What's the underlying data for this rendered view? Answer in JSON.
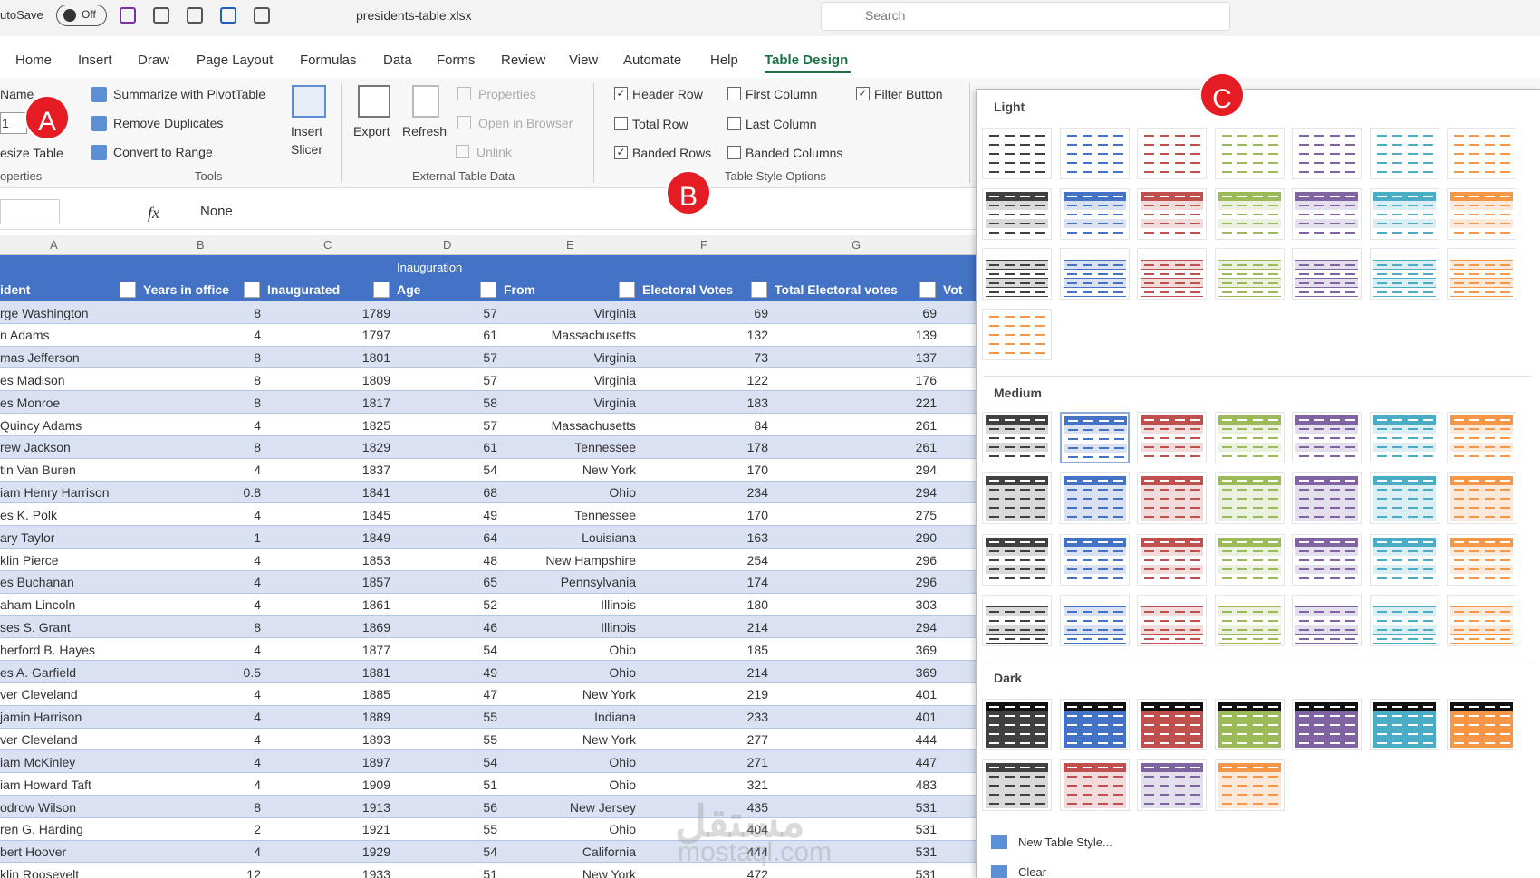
{
  "title_bar": {
    "autosave": "utoSave",
    "toggle": "Off",
    "filename": "presidents-table.xlsx",
    "search": "Search"
  },
  "tabs": [
    "Home",
    "Insert",
    "Draw",
    "Page Layout",
    "Formulas",
    "Data",
    "Forms",
    "Review",
    "View",
    "Automate",
    "Help",
    "Table Design"
  ],
  "active_tab": 11,
  "ribbon": {
    "properties": {
      "name": "Name",
      "box": "1",
      "resize": "esize Table",
      "group": "operties"
    },
    "tools": {
      "items": [
        "Summarize with PivotTable",
        "Remove Duplicates",
        "Convert to Range"
      ],
      "group": "Tools"
    },
    "slicer": [
      "Insert",
      "Slicer"
    ],
    "external": {
      "export": "Export",
      "refresh": "Refresh",
      "items": [
        "Properties",
        "Open in Browser",
        "Unlink"
      ],
      "group": "External Table Data"
    },
    "options": {
      "items": [
        {
          "label": "Header Row",
          "checked": true
        },
        {
          "label": "Total Row",
          "checked": false
        },
        {
          "label": "Banded Rows",
          "checked": true
        },
        {
          "label": "First Column",
          "checked": false
        },
        {
          "label": "Last Column",
          "checked": false
        },
        {
          "label": "Banded Columns",
          "checked": false
        },
        {
          "label": "Filter Button",
          "checked": true
        }
      ],
      "group": "Table Style Options"
    }
  },
  "formula_bar": {
    "fx": "fx",
    "value": "None"
  },
  "column_letters": [
    "A",
    "B",
    "C",
    "D",
    "E",
    "F",
    "G"
  ],
  "table": {
    "super_header": "Inauguration",
    "headers": [
      "ident",
      "Years in office",
      "Inaugurated",
      "Age",
      "From",
      "Electoral Votes",
      "Total Electoral votes",
      "Vot"
    ],
    "rows": [
      [
        "rge Washington",
        8,
        1789,
        57,
        "Virginia",
        69,
        69
      ],
      [
        "n Adams",
        4,
        1797,
        61,
        "Massachusetts",
        132,
        139
      ],
      [
        "mas Jefferson",
        8,
        1801,
        57,
        "Virginia",
        73,
        137
      ],
      [
        "es Madison",
        8,
        1809,
        57,
        "Virginia",
        122,
        176
      ],
      [
        "es Monroe",
        8,
        1817,
        58,
        "Virginia",
        183,
        221
      ],
      [
        "Quincy Adams",
        4,
        1825,
        57,
        "Massachusetts",
        84,
        261
      ],
      [
        "rew Jackson",
        8,
        1829,
        61,
        "Tennessee",
        178,
        261
      ],
      [
        "tin Van Buren",
        4,
        1837,
        54,
        "New York",
        170,
        294
      ],
      [
        "iam Henry Harrison",
        0.8,
        1841,
        68,
        "Ohio",
        234,
        294
      ],
      [
        "es K. Polk",
        4,
        1845,
        49,
        "Tennessee",
        170,
        275
      ],
      [
        "ary Taylor",
        1,
        1849,
        64,
        "Louisiana",
        163,
        290
      ],
      [
        "klin Pierce",
        4,
        1853,
        48,
        "New Hampshire",
        254,
        296
      ],
      [
        "es Buchanan",
        4,
        1857,
        65,
        "Pennsylvania",
        174,
        296
      ],
      [
        "aham Lincoln",
        4,
        1861,
        52,
        "Illinois",
        180,
        303
      ],
      [
        "ses S. Grant",
        8,
        1869,
        46,
        "Illinois",
        214,
        294
      ],
      [
        "herford B. Hayes",
        4,
        1877,
        54,
        "Ohio",
        185,
        369
      ],
      [
        "es A. Garfield",
        0.5,
        1881,
        49,
        "Ohio",
        214,
        369
      ],
      [
        "ver Cleveland",
        4,
        1885,
        47,
        "New York",
        219,
        401
      ],
      [
        "jamin Harrison",
        4,
        1889,
        55,
        "Indiana",
        233,
        401
      ],
      [
        "ver Cleveland",
        4,
        1893,
        55,
        "New York",
        277,
        444
      ],
      [
        "iam McKinley",
        4,
        1897,
        54,
        "Ohio",
        271,
        447
      ],
      [
        "iam Howard Taft",
        4,
        1909,
        51,
        "Ohio",
        321,
        483
      ],
      [
        "odrow Wilson",
        8,
        1913,
        56,
        "New Jersey",
        435,
        531
      ],
      [
        "ren G. Harding",
        2,
        1921,
        55,
        "Ohio",
        404,
        531
      ],
      [
        "bert Hoover",
        4,
        1929,
        54,
        "California",
        444,
        531
      ],
      [
        "klin Roosevelt",
        12,
        1933,
        51,
        "New York",
        472,
        531
      ]
    ]
  },
  "gallery": {
    "sections": [
      "Light",
      "Medium",
      "Dark"
    ],
    "menu": [
      "New Table Style...",
      "Clear"
    ]
  },
  "badges": [
    "A",
    "B",
    "C"
  ],
  "watermark": [
    "مستقل",
    "mostaql.com"
  ]
}
